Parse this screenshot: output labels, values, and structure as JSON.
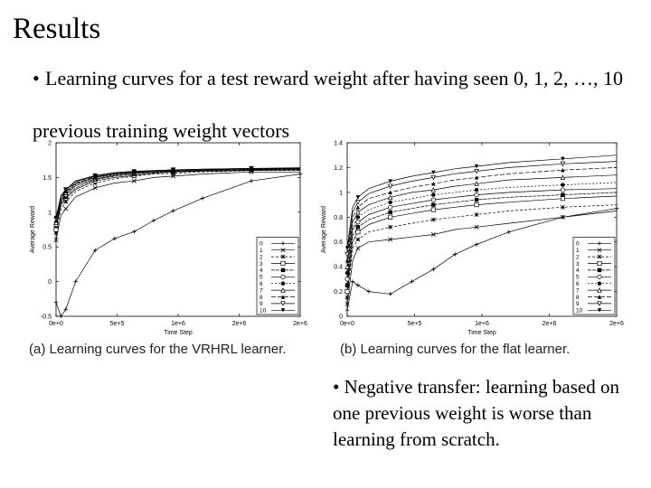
{
  "slide": {
    "title": "Results",
    "bullet_symbol": "•",
    "bullet1": "Learning curves for a test reward weight after having seen 0, 1, 2, …, 10 previous training weight vectors",
    "bullet2": "Negative transfer: learning based on one previous weight is worse than learning from scratch."
  },
  "figures": {
    "a_caption": "(a) Learning curves for the VRHRL learner.",
    "b_caption": "(b) Learning curves for the flat learner."
  },
  "chart_data": [
    {
      "type": "line",
      "xlabel": "Time Step",
      "ylabel": "Average Reward",
      "xlim": [
        0,
        2500000
      ],
      "ylim": [
        -0.5,
        2
      ],
      "x_ticks": [
        "0e+0",
        "5e+5",
        "1e+6",
        "2e+6",
        "2e+6"
      ],
      "y_ticks": [
        "-0.5",
        "0",
        "0.5",
        "1",
        "1.5",
        "2"
      ],
      "legend_entries": [
        "0",
        "1",
        "2",
        "3",
        "4",
        "5",
        "6",
        "7",
        "8",
        "9",
        "10"
      ],
      "legend_position": "bottom-right",
      "x": [
        0,
        50000,
        100000,
        200000,
        400000,
        600000,
        800000,
        1000000,
        1200000,
        1500000,
        2000000,
        2500000
      ],
      "series": [
        {
          "name": "0",
          "values": [
            -0.3,
            -0.5,
            -0.4,
            0.0,
            0.45,
            0.62,
            0.72,
            0.88,
            1.02,
            1.2,
            1.45,
            1.55
          ]
        },
        {
          "name": "1",
          "values": [
            0.6,
            0.95,
            1.05,
            1.22,
            1.35,
            1.42,
            1.45,
            1.5,
            1.52,
            1.55,
            1.58,
            1.58
          ]
        },
        {
          "name": "2",
          "values": [
            0.7,
            1.05,
            1.15,
            1.3,
            1.42,
            1.48,
            1.52,
            1.55,
            1.56,
            1.58,
            1.6,
            1.6
          ]
        },
        {
          "name": "3",
          "values": [
            0.75,
            1.1,
            1.2,
            1.33,
            1.45,
            1.5,
            1.53,
            1.56,
            1.58,
            1.59,
            1.6,
            1.61
          ]
        },
        {
          "name": "4",
          "values": [
            0.8,
            1.12,
            1.22,
            1.35,
            1.47,
            1.52,
            1.55,
            1.57,
            1.58,
            1.6,
            1.61,
            1.61
          ]
        },
        {
          "name": "5",
          "values": [
            0.82,
            1.15,
            1.25,
            1.38,
            1.48,
            1.53,
            1.56,
            1.58,
            1.59,
            1.6,
            1.61,
            1.62
          ]
        },
        {
          "name": "6",
          "values": [
            0.85,
            1.17,
            1.27,
            1.4,
            1.5,
            1.54,
            1.57,
            1.58,
            1.6,
            1.61,
            1.62,
            1.62
          ]
        },
        {
          "name": "7",
          "values": [
            0.85,
            1.18,
            1.28,
            1.41,
            1.5,
            1.55,
            1.57,
            1.59,
            1.6,
            1.61,
            1.62,
            1.63
          ]
        },
        {
          "name": "8",
          "values": [
            0.88,
            1.2,
            1.3,
            1.42,
            1.51,
            1.55,
            1.58,
            1.59,
            1.6,
            1.62,
            1.62,
            1.63
          ]
        },
        {
          "name": "9",
          "values": [
            0.9,
            1.22,
            1.32,
            1.44,
            1.52,
            1.56,
            1.58,
            1.6,
            1.61,
            1.62,
            1.63,
            1.63
          ]
        },
        {
          "name": "10",
          "values": [
            0.92,
            1.24,
            1.33,
            1.45,
            1.53,
            1.57,
            1.59,
            1.6,
            1.61,
            1.62,
            1.63,
            1.64
          ]
        }
      ]
    },
    {
      "type": "line",
      "xlabel": "Time Step",
      "ylabel": "Average Reward",
      "xlim": [
        0,
        2500000
      ],
      "ylim": [
        0,
        1.4
      ],
      "x_ticks": [
        "0e+0",
        "5e+5",
        "1e+6",
        "2e+6",
        "2e+6"
      ],
      "y_ticks": [
        "0",
        "0.2",
        "0.4",
        "0.6",
        "0.8",
        "1",
        "1.2",
        "1.4"
      ],
      "legend_entries": [
        "0",
        "1",
        "2",
        "3",
        "4",
        "5",
        "6",
        "7",
        "8",
        "9",
        "10"
      ],
      "legend_position": "bottom-right",
      "x": [
        0,
        50000,
        100000,
        200000,
        400000,
        600000,
        800000,
        1000000,
        1200000,
        1500000,
        2000000,
        2500000
      ],
      "series": [
        {
          "name": "0",
          "values": [
            0.05,
            0.28,
            0.25,
            0.2,
            0.18,
            0.28,
            0.38,
            0.5,
            0.58,
            0.68,
            0.8,
            0.87
          ]
        },
        {
          "name": "1",
          "values": [
            0.1,
            0.45,
            0.55,
            0.6,
            0.62,
            0.64,
            0.66,
            0.7,
            0.72,
            0.75,
            0.8,
            0.85
          ]
        },
        {
          "name": "2",
          "values": [
            0.15,
            0.55,
            0.62,
            0.68,
            0.72,
            0.75,
            0.78,
            0.8,
            0.82,
            0.85,
            0.88,
            0.9
          ]
        },
        {
          "name": "3",
          "values": [
            0.2,
            0.6,
            0.68,
            0.74,
            0.8,
            0.83,
            0.86,
            0.88,
            0.9,
            0.92,
            0.95,
            0.97
          ]
        },
        {
          "name": "4",
          "values": [
            0.25,
            0.65,
            0.72,
            0.78,
            0.84,
            0.87,
            0.9,
            0.92,
            0.94,
            0.96,
            0.98,
            1.0
          ]
        },
        {
          "name": "5",
          "values": [
            0.3,
            0.7,
            0.76,
            0.82,
            0.88,
            0.91,
            0.94,
            0.96,
            0.98,
            1.0,
            1.02,
            1.03
          ]
        },
        {
          "name": "6",
          "values": [
            0.35,
            0.72,
            0.8,
            0.86,
            0.92,
            0.95,
            0.98,
            1.0,
            1.02,
            1.04,
            1.06,
            1.08
          ]
        },
        {
          "name": "7",
          "values": [
            0.4,
            0.76,
            0.84,
            0.9,
            0.96,
            1.0,
            1.02,
            1.05,
            1.07,
            1.1,
            1.12,
            1.14
          ]
        },
        {
          "name": "8",
          "values": [
            0.45,
            0.8,
            0.88,
            0.95,
            1.0,
            1.04,
            1.07,
            1.1,
            1.12,
            1.15,
            1.18,
            1.2
          ]
        },
        {
          "name": "9",
          "values": [
            0.5,
            0.84,
            0.92,
            0.99,
            1.05,
            1.09,
            1.12,
            1.15,
            1.17,
            1.2,
            1.23,
            1.25
          ]
        },
        {
          "name": "10",
          "values": [
            0.55,
            0.88,
            0.96,
            1.03,
            1.09,
            1.13,
            1.16,
            1.19,
            1.21,
            1.24,
            1.27,
            1.3
          ]
        }
      ]
    }
  ]
}
